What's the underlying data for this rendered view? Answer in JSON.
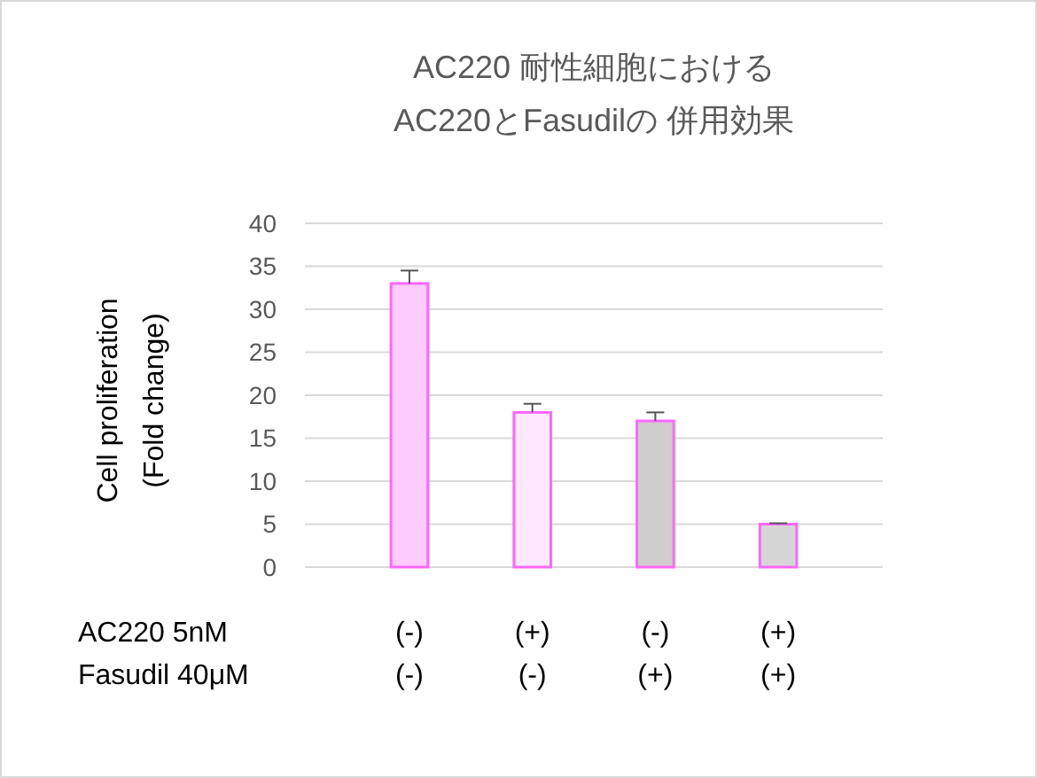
{
  "chart_data": {
    "type": "bar",
    "title": "AC220 耐性細胞における\nAC220とFasudilの 併用効果",
    "ylabel": "Cell proliferation\n(Fold change)",
    "xlabel": "AC220 5nM\nFasudil 40μM",
    "categories": [
      "(-)\n(-)",
      "(+)\n(-)",
      "(-)\n(+)",
      "(+)\n(+)"
    ],
    "values": [
      33,
      18,
      17,
      5
    ],
    "errors": [
      1.5,
      1,
      1,
      0.1
    ],
    "colors": [
      "#ffccff",
      "#fde8fd",
      "#d0cece",
      "#d6d6d6"
    ],
    "ylim": [
      0,
      40
    ],
    "yticks": [
      0,
      5,
      10,
      15,
      20,
      25,
      30,
      35,
      40
    ],
    "grid": "y"
  }
}
